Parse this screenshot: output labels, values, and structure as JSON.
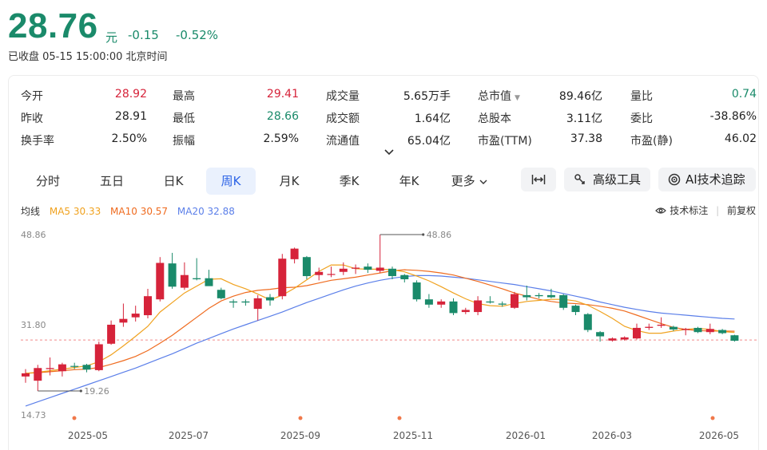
{
  "quote": {
    "price": "28.76",
    "unit": "元",
    "change": "-0.15",
    "change_pct": "-0.52%",
    "status": "已收盘 05-15 15:00:00 北京时间"
  },
  "stats": [
    {
      "label": "今开",
      "value": "28.92",
      "color": "up"
    },
    {
      "label": "最高",
      "value": "29.41",
      "color": "up"
    },
    {
      "label": "成交量",
      "value": "5.65万手",
      "color": ""
    },
    {
      "label": "总市值",
      "value": "89.46亿",
      "color": "",
      "has_caret": true
    },
    {
      "label": "量比",
      "value": "0.74",
      "color": "down"
    },
    {
      "label": "昨收",
      "value": "28.91",
      "color": ""
    },
    {
      "label": "最低",
      "value": "28.66",
      "color": "down"
    },
    {
      "label": "成交额",
      "value": "1.64亿",
      "color": ""
    },
    {
      "label": "总股本",
      "value": "3.11亿",
      "color": ""
    },
    {
      "label": "委比",
      "value": "-38.86%",
      "color": ""
    },
    {
      "label": "换手率",
      "value": "2.50%",
      "color": ""
    },
    {
      "label": "振幅",
      "value": "2.59%",
      "color": ""
    },
    {
      "label": "流通值",
      "value": "65.04亿",
      "color": ""
    },
    {
      "label": "市盈(TTM)",
      "value": "37.38",
      "color": ""
    },
    {
      "label": "市盈(静)",
      "value": "46.02",
      "color": ""
    }
  ],
  "tabs": [
    {
      "label": "分时",
      "active": false
    },
    {
      "label": "五日",
      "active": false
    },
    {
      "label": "日K",
      "active": false
    },
    {
      "label": "周K",
      "active": true
    },
    {
      "label": "月K",
      "active": false
    },
    {
      "label": "季K",
      "active": false
    },
    {
      "label": "年K",
      "active": false
    },
    {
      "label": "更多",
      "active": false
    }
  ],
  "tools": {
    "advanced": "高级工具",
    "ai": "AI技术追踪"
  },
  "ma_legend": {
    "label": "均线",
    "ma5": "MA5 30.33",
    "ma10": "MA10 30.57",
    "ma20": "MA20 32.88"
  },
  "right_links": {
    "tech_marks": "技术标注",
    "adjust": "前复权"
  },
  "colors": {
    "up": "#d6233a",
    "down": "#1a8a6a",
    "ma5": "#f0a21f",
    "ma10": "#ef6b1f",
    "ma20": "#5b7fe9",
    "active_tab": "#2d64e6"
  },
  "chart_data": {
    "type": "candlestick",
    "y_ticks": [
      "48.86",
      "31.80",
      "14.73"
    ],
    "ylim": [
      14.73,
      48.86
    ],
    "x_ticks": [
      "2025-05",
      "2025-07",
      "2025-09",
      "2025-11",
      "2026-01",
      "2026-03",
      "2026-05"
    ],
    "high_marker": "48.86",
    "low_marker": "19.26",
    "reference_price": 28.91,
    "candles": [
      {
        "o": 22.0,
        "h": 23.4,
        "l": 20.8,
        "c": 22.6
      },
      {
        "o": 21.2,
        "h": 24.2,
        "l": 19.26,
        "c": 23.6
      },
      {
        "o": 23.4,
        "h": 25.6,
        "l": 22.2,
        "c": 23.6
      },
      {
        "o": 23.0,
        "h": 24.6,
        "l": 22.0,
        "c": 24.3
      },
      {
        "o": 24.0,
        "h": 24.6,
        "l": 23.4,
        "c": 23.9
      },
      {
        "o": 24.2,
        "h": 24.4,
        "l": 22.8,
        "c": 23.3
      },
      {
        "o": 23.2,
        "h": 28.6,
        "l": 23.0,
        "c": 28.1
      },
      {
        "o": 28.2,
        "h": 32.6,
        "l": 28.0,
        "c": 31.8
      },
      {
        "o": 32.2,
        "h": 35.8,
        "l": 31.4,
        "c": 32.9
      },
      {
        "o": 33.2,
        "h": 35.4,
        "l": 32.4,
        "c": 33.9
      },
      {
        "o": 33.6,
        "h": 38.6,
        "l": 33.0,
        "c": 37.2
      },
      {
        "o": 36.6,
        "h": 44.6,
        "l": 36.2,
        "c": 43.5
      },
      {
        "o": 43.4,
        "h": 45.4,
        "l": 38.6,
        "c": 39.0
      },
      {
        "o": 38.8,
        "h": 43.6,
        "l": 38.4,
        "c": 41.2
      },
      {
        "o": 40.6,
        "h": 44.4,
        "l": 40.2,
        "c": 40.4
      },
      {
        "o": 40.6,
        "h": 42.2,
        "l": 39.4,
        "c": 39.1
      },
      {
        "o": 38.4,
        "h": 38.8,
        "l": 36.6,
        "c": 36.8
      },
      {
        "o": 36.2,
        "h": 36.6,
        "l": 35.0,
        "c": 36.0
      },
      {
        "o": 36.2,
        "h": 36.6,
        "l": 35.4,
        "c": 36.0
      },
      {
        "o": 34.8,
        "h": 37.4,
        "l": 32.6,
        "c": 36.8
      },
      {
        "o": 37.0,
        "h": 37.6,
        "l": 35.4,
        "c": 36.4
      },
      {
        "o": 37.2,
        "h": 45.2,
        "l": 36.6,
        "c": 44.3
      },
      {
        "o": 44.2,
        "h": 46.4,
        "l": 43.4,
        "c": 46.2
      },
      {
        "o": 44.6,
        "h": 44.8,
        "l": 40.4,
        "c": 41.0
      },
      {
        "o": 41.2,
        "h": 42.6,
        "l": 40.2,
        "c": 41.8
      },
      {
        "o": 41.4,
        "h": 42.8,
        "l": 40.8,
        "c": 41.4
      },
      {
        "o": 41.8,
        "h": 43.6,
        "l": 41.2,
        "c": 42.4
      },
      {
        "o": 42.4,
        "h": 43.2,
        "l": 41.4,
        "c": 42.6
      },
      {
        "o": 42.8,
        "h": 43.4,
        "l": 41.6,
        "c": 42.2
      },
      {
        "o": 42.0,
        "h": 48.86,
        "l": 41.6,
        "c": 42.6
      },
      {
        "o": 42.4,
        "h": 42.8,
        "l": 40.4,
        "c": 41.0
      },
      {
        "o": 41.2,
        "h": 41.4,
        "l": 39.8,
        "c": 40.4
      },
      {
        "o": 39.8,
        "h": 40.2,
        "l": 36.2,
        "c": 36.6
      },
      {
        "o": 36.6,
        "h": 37.6,
        "l": 35.0,
        "c": 35.6
      },
      {
        "o": 35.6,
        "h": 36.6,
        "l": 35.0,
        "c": 36.2
      },
      {
        "o": 36.2,
        "h": 36.8,
        "l": 33.6,
        "c": 34.0
      },
      {
        "o": 34.2,
        "h": 35.0,
        "l": 33.8,
        "c": 34.6
      },
      {
        "o": 34.2,
        "h": 37.2,
        "l": 33.6,
        "c": 36.4
      },
      {
        "o": 36.2,
        "h": 37.2,
        "l": 35.8,
        "c": 36.0
      },
      {
        "o": 35.8,
        "h": 36.2,
        "l": 35.2,
        "c": 35.6
      },
      {
        "o": 35.0,
        "h": 38.0,
        "l": 34.8,
        "c": 37.6
      },
      {
        "o": 37.4,
        "h": 39.2,
        "l": 36.4,
        "c": 37.0
      },
      {
        "o": 37.4,
        "h": 37.8,
        "l": 36.8,
        "c": 37.2
      },
      {
        "o": 37.4,
        "h": 38.6,
        "l": 36.8,
        "c": 37.0
      },
      {
        "o": 37.4,
        "h": 37.6,
        "l": 34.6,
        "c": 35.0
      },
      {
        "o": 35.4,
        "h": 35.6,
        "l": 33.6,
        "c": 34.2
      },
      {
        "o": 33.8,
        "h": 34.0,
        "l": 30.4,
        "c": 30.8
      },
      {
        "o": 30.4,
        "h": 30.6,
        "l": 28.6,
        "c": 29.6
      },
      {
        "o": 28.8,
        "h": 29.4,
        "l": 28.6,
        "c": 29.2
      },
      {
        "o": 29.0,
        "h": 29.6,
        "l": 28.8,
        "c": 29.4
      },
      {
        "o": 29.2,
        "h": 32.0,
        "l": 29.0,
        "c": 31.2
      },
      {
        "o": 31.2,
        "h": 32.0,
        "l": 30.8,
        "c": 31.4
      },
      {
        "o": 31.6,
        "h": 33.2,
        "l": 31.2,
        "c": 31.8
      },
      {
        "o": 31.4,
        "h": 31.6,
        "l": 30.6,
        "c": 30.9
      },
      {
        "o": 30.8,
        "h": 31.2,
        "l": 29.8,
        "c": 31.0
      },
      {
        "o": 31.2,
        "h": 31.4,
        "l": 30.2,
        "c": 30.4
      },
      {
        "o": 30.4,
        "h": 32.0,
        "l": 30.0,
        "c": 31.0
      },
      {
        "o": 30.8,
        "h": 31.0,
        "l": 30.0,
        "c": 30.2
      },
      {
        "o": 29.8,
        "h": 29.9,
        "l": 28.6,
        "c": 28.76
      }
    ],
    "ma5": [
      22.6,
      22.8,
      23.1,
      23.4,
      23.7,
      24.0,
      24.8,
      26.1,
      27.8,
      29.6,
      31.5,
      34.2,
      36.0,
      37.8,
      39.1,
      40.4,
      40.5,
      39.4,
      38.6,
      37.6,
      36.5,
      37.4,
      38.7,
      40.3,
      41.9,
      43.1,
      43.1,
      42.4,
      42.3,
      42.3,
      42.2,
      41.8,
      41.0,
      40.1,
      39.0,
      37.8,
      36.7,
      35.8,
      35.4,
      35.3,
      35.8,
      36.2,
      36.4,
      36.6,
      36.6,
      36.3,
      35.5,
      34.3,
      33.0,
      31.5,
      30.7,
      30.2,
      30.2,
      30.6,
      30.9,
      31.1,
      30.9,
      30.5,
      30.33
    ],
    "ma10": [
      22.6,
      22.7,
      22.9,
      23.1,
      23.3,
      23.4,
      23.7,
      24.3,
      25.0,
      25.8,
      26.9,
      28.3,
      29.8,
      31.5,
      33.2,
      34.9,
      36.3,
      37.2,
      37.9,
      38.3,
      38.5,
      38.8,
      38.9,
      39.2,
      39.7,
      40.2,
      40.5,
      40.8,
      41.2,
      41.6,
      42.0,
      42.2,
      42.1,
      41.9,
      41.6,
      41.2,
      40.6,
      40.0,
      39.3,
      38.6,
      37.8,
      37.2,
      36.6,
      36.2,
      35.9,
      35.8,
      35.6,
      35.3,
      34.9,
      34.4,
      33.6,
      32.8,
      32.0,
      31.3,
      30.9,
      30.7,
      30.6,
      30.6,
      30.57
    ],
    "ma20": [
      16.4,
      17.2,
      18.0,
      18.8,
      19.6,
      20.4,
      21.2,
      22.0,
      22.8,
      23.6,
      24.5,
      25.4,
      26.3,
      27.3,
      28.3,
      29.2,
      30.1,
      31.0,
      31.8,
      32.6,
      33.4,
      34.2,
      35.1,
      36.0,
      36.8,
      37.6,
      38.4,
      39.1,
      39.7,
      40.2,
      40.6,
      40.9,
      41.1,
      41.1,
      41.0,
      40.8,
      40.6,
      40.3,
      40.0,
      39.7,
      39.4,
      39.0,
      38.6,
      38.2,
      37.7,
      37.2,
      36.7,
      36.1,
      35.6,
      35.1,
      34.7,
      34.3,
      34.0,
      33.8,
      33.6,
      33.4,
      33.2,
      33.0,
      32.88
    ]
  }
}
